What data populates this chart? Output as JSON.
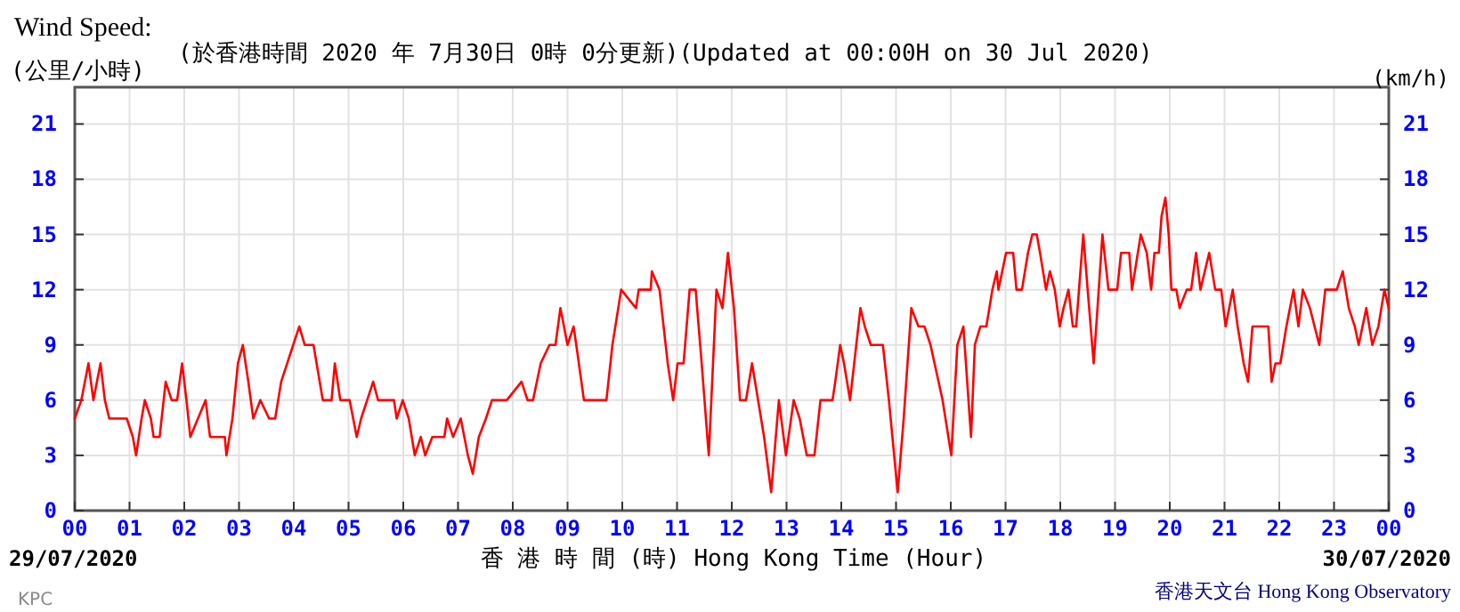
{
  "chart_data": {
    "type": "line",
    "title": "Wind Speed:",
    "subtitle": "(於香港時間 2020 年 7月30日 0時 0分更新)(Updated at 00:00H on 30 Jul 2020)",
    "ylabel": "(公里/小時)",
    "y2label": "(km/h)",
    "xlabel": "香 港 時 間 (時) Hong Kong Time (Hour)",
    "annotations": [
      "29/07/2020",
      "30/07/2020",
      "香港天文台 Hong Kong Observatory",
      "KPC"
    ],
    "grid": true,
    "marker": "none",
    "line_style": "solid",
    "xlim": [
      0,
      24
    ],
    "xticks": [
      {
        "value": 0,
        "label": "00"
      },
      {
        "value": 1,
        "label": "01"
      },
      {
        "value": 2,
        "label": "02"
      },
      {
        "value": 3,
        "label": "03"
      },
      {
        "value": 4,
        "label": "04"
      },
      {
        "value": 5,
        "label": "05"
      },
      {
        "value": 6,
        "label": "06"
      },
      {
        "value": 7,
        "label": "07"
      },
      {
        "value": 8,
        "label": "08"
      },
      {
        "value": 9,
        "label": "09"
      },
      {
        "value": 10,
        "label": "10"
      },
      {
        "value": 11,
        "label": "11"
      },
      {
        "value": 12,
        "label": "12"
      },
      {
        "value": 13,
        "label": "13"
      },
      {
        "value": 14,
        "label": "14"
      },
      {
        "value": 15,
        "label": "15"
      },
      {
        "value": 16,
        "label": "16"
      },
      {
        "value": 17,
        "label": "17"
      },
      {
        "value": 18,
        "label": "18"
      },
      {
        "value": 19,
        "label": "19"
      },
      {
        "value": 20,
        "label": "20"
      },
      {
        "value": 21,
        "label": "21"
      },
      {
        "value": 22,
        "label": "22"
      },
      {
        "value": 23,
        "label": "23"
      },
      {
        "value": 24,
        "label": "00"
      }
    ],
    "ylim": [
      0,
      23
    ],
    "yticks": [
      0,
      3,
      6,
      9,
      12,
      15,
      18,
      21
    ],
    "y2lim": [
      0,
      23
    ],
    "y2ticks": [
      0,
      3,
      6,
      9,
      12,
      15,
      18,
      21
    ],
    "series": [
      {
        "color": "#ff0000",
        "x": [
          0,
          0.12,
          0.25,
          0.34,
          0.47,
          0.55,
          0.63,
          0.95,
          1.06,
          1.12,
          1.22,
          1.28,
          1.39,
          1.44,
          1.55,
          1.66,
          1.77,
          1.87,
          1.96,
          2.04,
          2.11,
          2.25,
          2.39,
          2.47,
          2.74,
          2.77,
          2.88,
          2.98,
          3.07,
          3.17,
          3.26,
          3.39,
          3.55,
          3.66,
          3.77,
          3.88,
          3.99,
          4.1,
          4.2,
          4.36,
          4.53,
          4.69,
          4.75,
          4.85,
          5.02,
          5.15,
          5.23,
          5.34,
          5.45,
          5.54,
          5.83,
          5.88,
          5.99,
          6.1,
          6.21,
          6.32,
          6.4,
          6.53,
          6.75,
          6.8,
          6.91,
          7.05,
          7.18,
          7.27,
          7.38,
          7.51,
          7.62,
          7.89,
          8.16,
          8.27,
          8.37,
          8.51,
          8.67,
          8.78,
          8.87,
          9.0,
          9.11,
          9.16,
          9.3,
          9.71,
          9.82,
          9.98,
          10.25,
          10.3,
          10.52,
          10.54,
          10.68,
          10.83,
          10.93,
          11.01,
          11.12,
          11.23,
          11.34,
          11.45,
          11.58,
          11.72,
          11.83,
          11.93,
          12.04,
          12.15,
          12.26,
          12.37,
          12.48,
          12.59,
          12.72,
          12.86,
          12.99,
          13.13,
          13.24,
          13.37,
          13.51,
          13.62,
          13.84,
          13.89,
          13.98,
          14.05,
          14.16,
          14.35,
          14.43,
          14.54,
          14.76,
          14.87,
          15.03,
          15.14,
          15.28,
          15.41,
          15.52,
          15.63,
          15.85,
          16.01,
          16.12,
          16.23,
          16.37,
          16.44,
          16.54,
          16.65,
          16.76,
          16.84,
          16.87,
          17.01,
          17.14,
          17.2,
          17.3,
          17.41,
          17.49,
          17.57,
          17.63,
          17.74,
          17.81,
          17.9,
          17.99,
          18.06,
          18.15,
          18.23,
          18.29,
          18.42,
          18.5,
          18.61,
          18.68,
          18.77,
          18.88,
          19.04,
          19.11,
          19.26,
          19.31,
          19.47,
          19.58,
          19.66,
          19.72,
          19.8,
          19.85,
          19.92,
          19.98,
          20.03,
          20.12,
          20.18,
          20.31,
          20.39,
          20.48,
          20.56,
          20.72,
          20.83,
          20.94,
          21.02,
          21.15,
          21.24,
          21.35,
          21.43,
          21.51,
          21.8,
          21.86,
          21.93,
          22.02,
          22.13,
          22.26,
          22.35,
          22.43,
          22.56,
          22.73,
          22.84,
          23.05,
          23.16,
          23.27,
          23.38,
          23.45,
          23.59,
          23.7,
          23.81,
          23.92,
          24.0
        ],
        "values": [
          5,
          6,
          8,
          6,
          8,
          6,
          5,
          5,
          4,
          3,
          5,
          6,
          5,
          4,
          4,
          7,
          6,
          6,
          8,
          6,
          4,
          5,
          6,
          4,
          4,
          3,
          5,
          8,
          9,
          7,
          5,
          6,
          5,
          5,
          7,
          8,
          9,
          10,
          9,
          9,
          6,
          6,
          8,
          6,
          6,
          4,
          5,
          6,
          7,
          6,
          6,
          5,
          6,
          5,
          3,
          4,
          3,
          4,
          4,
          5,
          4,
          5,
          3,
          2,
          4,
          5,
          6,
          6,
          7,
          6,
          6,
          8,
          9,
          9,
          11,
          9,
          10,
          9,
          6,
          6,
          9,
          12,
          11,
          12,
          12,
          13,
          12,
          8,
          6,
          8,
          8,
          12,
          12,
          8,
          3,
          12,
          11,
          14,
          11,
          6,
          6,
          8,
          6,
          4,
          1,
          6,
          3,
          6,
          5,
          3,
          3,
          6,
          6,
          7,
          9,
          8,
          6,
          11,
          10,
          9,
          9,
          6,
          1,
          5,
          11,
          10,
          10,
          9,
          6,
          3,
          9,
          10,
          4,
          9,
          10,
          10,
          12,
          13,
          12,
          14,
          14,
          12,
          12,
          14,
          15,
          15,
          14,
          12,
          13,
          12,
          10,
          11,
          12,
          10,
          10,
          15,
          12,
          8,
          11,
          15,
          12,
          12,
          14,
          14,
          12,
          15,
          14,
          12,
          14,
          14,
          16,
          17,
          15,
          12,
          12,
          11,
          12,
          12,
          14,
          12,
          14,
          12,
          12,
          10,
          12,
          10,
          8,
          7,
          10,
          10,
          7,
          8,
          8,
          10,
          12,
          10,
          12,
          11,
          9,
          12,
          12,
          13,
          11,
          10,
          9,
          11,
          9,
          10,
          12,
          11
        ]
      }
    ]
  }
}
